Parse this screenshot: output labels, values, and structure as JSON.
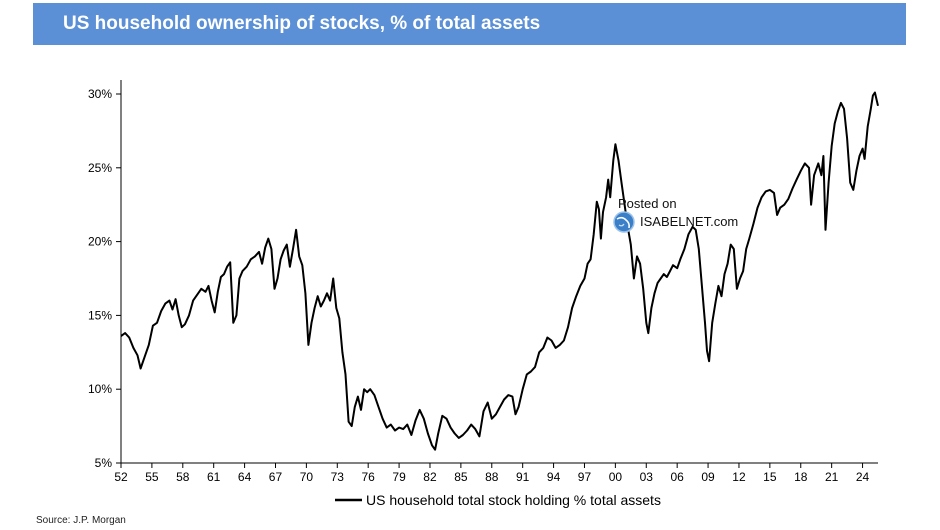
{
  "title": "US household ownership of stocks, % of total assets",
  "source": "Source: J.P. Morgan",
  "watermark": {
    "line1": "Posted on",
    "line2": "ISABELNET.com"
  },
  "colors": {
    "title_bg": "#5b8fd6",
    "title_text": "#ffffff",
    "line": "#000000"
  },
  "chart_data": {
    "type": "line",
    "title": "US household ownership of stocks, % of total assets",
    "xlabel": "",
    "ylabel": "",
    "ylim": [
      5,
      30
    ],
    "xlim": [
      1952,
      2025.5
    ],
    "yticks": [
      5,
      10,
      15,
      20,
      25,
      30
    ],
    "ytick_labels": [
      "5%",
      "10%",
      "15%",
      "20%",
      "25%",
      "30%"
    ],
    "xticks": [
      1952,
      1955,
      1958,
      1961,
      1964,
      1967,
      1970,
      1973,
      1976,
      1979,
      1982,
      1985,
      1988,
      1991,
      1994,
      1997,
      2000,
      2003,
      2006,
      2009,
      2012,
      2015,
      2018,
      2021,
      2024
    ],
    "xtick_labels": [
      "52",
      "55",
      "58",
      "61",
      "64",
      "67",
      "70",
      "73",
      "76",
      "79",
      "82",
      "85",
      "88",
      "91",
      "94",
      "97",
      "00",
      "03",
      "06",
      "09",
      "12",
      "15",
      "18",
      "21",
      "24"
    ],
    "legend": {
      "position": "bottom",
      "entries": [
        "US household total stock holding % total assets"
      ]
    },
    "series": [
      {
        "name": "US household total stock holding % total assets",
        "points": [
          [
            1952.0,
            13.6
          ],
          [
            1952.4,
            13.8
          ],
          [
            1952.8,
            13.5
          ],
          [
            1953.2,
            12.8
          ],
          [
            1953.6,
            12.3
          ],
          [
            1953.9,
            11.4
          ],
          [
            1954.3,
            12.2
          ],
          [
            1954.7,
            13.0
          ],
          [
            1955.1,
            14.3
          ],
          [
            1955.5,
            14.5
          ],
          [
            1955.9,
            15.3
          ],
          [
            1956.3,
            15.8
          ],
          [
            1956.7,
            16.0
          ],
          [
            1957.0,
            15.4
          ],
          [
            1957.3,
            16.1
          ],
          [
            1957.6,
            15.0
          ],
          [
            1957.9,
            14.2
          ],
          [
            1958.2,
            14.4
          ],
          [
            1958.6,
            15.0
          ],
          [
            1959.0,
            16.0
          ],
          [
            1959.4,
            16.4
          ],
          [
            1959.8,
            16.8
          ],
          [
            1960.2,
            16.6
          ],
          [
            1960.5,
            17.0
          ],
          [
            1960.8,
            16.0
          ],
          [
            1961.1,
            15.2
          ],
          [
            1961.4,
            16.6
          ],
          [
            1961.7,
            17.6
          ],
          [
            1962.0,
            17.8
          ],
          [
            1962.3,
            18.3
          ],
          [
            1962.6,
            18.6
          ],
          [
            1962.9,
            14.5
          ],
          [
            1963.2,
            15.0
          ],
          [
            1963.5,
            17.5
          ],
          [
            1963.8,
            18.0
          ],
          [
            1964.2,
            18.3
          ],
          [
            1964.6,
            18.8
          ],
          [
            1965.0,
            19.0
          ],
          [
            1965.4,
            19.3
          ],
          [
            1965.7,
            18.5
          ],
          [
            1966.0,
            19.6
          ],
          [
            1966.3,
            20.2
          ],
          [
            1966.6,
            19.5
          ],
          [
            1966.9,
            16.8
          ],
          [
            1967.2,
            17.5
          ],
          [
            1967.5,
            18.8
          ],
          [
            1967.8,
            19.4
          ],
          [
            1968.1,
            19.8
          ],
          [
            1968.4,
            18.3
          ],
          [
            1968.7,
            19.5
          ],
          [
            1969.0,
            20.8
          ],
          [
            1969.3,
            19.0
          ],
          [
            1969.6,
            18.4
          ],
          [
            1969.9,
            16.5
          ],
          [
            1970.2,
            13.0
          ],
          [
            1970.5,
            14.5
          ],
          [
            1970.8,
            15.5
          ],
          [
            1971.1,
            16.3
          ],
          [
            1971.4,
            15.6
          ],
          [
            1971.7,
            16.0
          ],
          [
            1972.0,
            16.5
          ],
          [
            1972.3,
            16.0
          ],
          [
            1972.6,
            17.5
          ],
          [
            1972.9,
            15.5
          ],
          [
            1973.2,
            14.8
          ],
          [
            1973.5,
            12.5
          ],
          [
            1973.8,
            11.0
          ],
          [
            1974.1,
            7.8
          ],
          [
            1974.4,
            7.5
          ],
          [
            1974.7,
            8.8
          ],
          [
            1975.0,
            9.5
          ],
          [
            1975.3,
            8.6
          ],
          [
            1975.6,
            10.0
          ],
          [
            1975.9,
            9.8
          ],
          [
            1976.2,
            10.0
          ],
          [
            1976.6,
            9.6
          ],
          [
            1977.0,
            8.8
          ],
          [
            1977.4,
            8.0
          ],
          [
            1977.8,
            7.4
          ],
          [
            1978.2,
            7.6
          ],
          [
            1978.6,
            7.2
          ],
          [
            1979.0,
            7.4
          ],
          [
            1979.4,
            7.3
          ],
          [
            1979.8,
            7.6
          ],
          [
            1980.2,
            6.9
          ],
          [
            1980.6,
            7.9
          ],
          [
            1981.0,
            8.6
          ],
          [
            1981.4,
            8.0
          ],
          [
            1981.8,
            7.0
          ],
          [
            1982.2,
            6.2
          ],
          [
            1982.5,
            5.9
          ],
          [
            1982.8,
            7.0
          ],
          [
            1983.2,
            8.2
          ],
          [
            1983.6,
            8.0
          ],
          [
            1984.0,
            7.4
          ],
          [
            1984.4,
            7.0
          ],
          [
            1984.8,
            6.7
          ],
          [
            1985.2,
            6.9
          ],
          [
            1985.6,
            7.2
          ],
          [
            1986.0,
            7.6
          ],
          [
            1986.4,
            7.3
          ],
          [
            1986.8,
            6.8
          ],
          [
            1987.2,
            8.5
          ],
          [
            1987.6,
            9.1
          ],
          [
            1988.0,
            8.0
          ],
          [
            1988.4,
            8.3
          ],
          [
            1988.8,
            8.8
          ],
          [
            1989.2,
            9.3
          ],
          [
            1989.6,
            9.6
          ],
          [
            1990.0,
            9.5
          ],
          [
            1990.3,
            8.3
          ],
          [
            1990.6,
            8.8
          ],
          [
            1991.0,
            10.0
          ],
          [
            1991.4,
            11.0
          ],
          [
            1991.8,
            11.2
          ],
          [
            1992.2,
            11.5
          ],
          [
            1992.6,
            12.5
          ],
          [
            1993.0,
            12.8
          ],
          [
            1993.4,
            13.5
          ],
          [
            1993.8,
            13.3
          ],
          [
            1994.2,
            12.8
          ],
          [
            1994.6,
            13.0
          ],
          [
            1995.0,
            13.3
          ],
          [
            1995.4,
            14.2
          ],
          [
            1995.8,
            15.5
          ],
          [
            1996.2,
            16.3
          ],
          [
            1996.6,
            17.0
          ],
          [
            1997.0,
            17.5
          ],
          [
            1997.3,
            18.5
          ],
          [
            1997.6,
            18.8
          ],
          [
            1997.9,
            20.5
          ],
          [
            1998.2,
            22.7
          ],
          [
            1998.4,
            22.2
          ],
          [
            1998.6,
            20.2
          ],
          [
            1998.8,
            22.0
          ],
          [
            1999.1,
            23.0
          ],
          [
            1999.3,
            24.2
          ],
          [
            1999.5,
            23.0
          ],
          [
            1999.8,
            25.5
          ],
          [
            2000.0,
            26.6
          ],
          [
            2000.3,
            25.5
          ],
          [
            2000.6,
            24.0
          ],
          [
            2000.9,
            22.5
          ],
          [
            2001.2,
            21.0
          ],
          [
            2001.5,
            19.8
          ],
          [
            2001.8,
            17.5
          ],
          [
            2002.1,
            19.0
          ],
          [
            2002.4,
            18.5
          ],
          [
            2002.7,
            16.8
          ],
          [
            2003.0,
            14.5
          ],
          [
            2003.2,
            13.8
          ],
          [
            2003.5,
            15.5
          ],
          [
            2003.8,
            16.5
          ],
          [
            2004.1,
            17.2
          ],
          [
            2004.4,
            17.5
          ],
          [
            2004.7,
            17.8
          ],
          [
            2005.0,
            17.6
          ],
          [
            2005.3,
            18.0
          ],
          [
            2005.6,
            18.4
          ],
          [
            2006.0,
            18.2
          ],
          [
            2006.3,
            18.8
          ],
          [
            2006.7,
            19.5
          ],
          [
            2007.1,
            20.5
          ],
          [
            2007.5,
            21.0
          ],
          [
            2007.8,
            20.8
          ],
          [
            2008.1,
            19.5
          ],
          [
            2008.4,
            17.0
          ],
          [
            2008.7,
            14.5
          ],
          [
            2008.9,
            12.6
          ],
          [
            2009.1,
            11.9
          ],
          [
            2009.4,
            14.5
          ],
          [
            2009.7,
            15.8
          ],
          [
            2010.0,
            17.0
          ],
          [
            2010.3,
            16.3
          ],
          [
            2010.6,
            17.8
          ],
          [
            2010.9,
            18.5
          ],
          [
            2011.2,
            19.8
          ],
          [
            2011.5,
            19.5
          ],
          [
            2011.8,
            16.8
          ],
          [
            2012.1,
            17.5
          ],
          [
            2012.4,
            18.0
          ],
          [
            2012.7,
            19.5
          ],
          [
            2013.0,
            20.2
          ],
          [
            2013.4,
            21.2
          ],
          [
            2013.8,
            22.3
          ],
          [
            2014.2,
            23.0
          ],
          [
            2014.6,
            23.4
          ],
          [
            2015.0,
            23.5
          ],
          [
            2015.4,
            23.3
          ],
          [
            2015.7,
            21.8
          ],
          [
            2016.0,
            22.3
          ],
          [
            2016.4,
            22.5
          ],
          [
            2016.8,
            22.9
          ],
          [
            2017.2,
            23.6
          ],
          [
            2017.6,
            24.2
          ],
          [
            2018.0,
            24.8
          ],
          [
            2018.4,
            25.3
          ],
          [
            2018.8,
            25.0
          ],
          [
            2019.0,
            22.5
          ],
          [
            2019.3,
            24.5
          ],
          [
            2019.7,
            25.3
          ],
          [
            2020.0,
            24.5
          ],
          [
            2020.2,
            25.8
          ],
          [
            2020.4,
            20.8
          ],
          [
            2020.7,
            24.0
          ],
          [
            2021.0,
            26.5
          ],
          [
            2021.3,
            28.0
          ],
          [
            2021.6,
            28.8
          ],
          [
            2021.9,
            29.4
          ],
          [
            2022.2,
            29.0
          ],
          [
            2022.5,
            27.0
          ],
          [
            2022.8,
            24.0
          ],
          [
            2023.1,
            23.5
          ],
          [
            2023.4,
            24.8
          ],
          [
            2023.7,
            25.8
          ],
          [
            2024.0,
            26.3
          ],
          [
            2024.2,
            25.6
          ],
          [
            2024.5,
            27.8
          ],
          [
            2024.8,
            29.0
          ],
          [
            2025.0,
            29.9
          ],
          [
            2025.2,
            30.1
          ],
          [
            2025.5,
            29.2
          ]
        ]
      }
    ]
  }
}
